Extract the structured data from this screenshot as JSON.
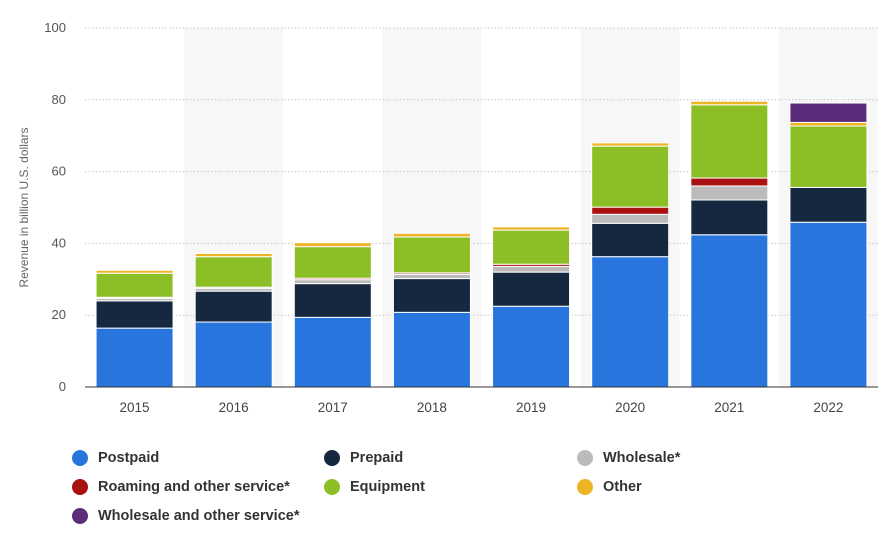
{
  "chart_data": {
    "type": "bar",
    "stacked": true,
    "categories": [
      "2015",
      "2016",
      "2017",
      "2018",
      "2019",
      "2020",
      "2021",
      "2022"
    ],
    "ylabel": "Revenue in billion U.S. dollars",
    "xlabel": "",
    "ylim": [
      0,
      100
    ],
    "yticks": [
      0,
      20,
      40,
      60,
      80,
      100
    ],
    "grid": true,
    "legend_position": "bottom",
    "series": [
      {
        "name": "Postpaid",
        "color": "#2876DD",
        "values": [
          16.4,
          18.1,
          19.4,
          20.8,
          22.5,
          36.3,
          42.4,
          45.9
        ]
      },
      {
        "name": "Prepaid",
        "color": "#152840",
        "values": [
          7.6,
          8.6,
          9.4,
          9.4,
          9.5,
          9.3,
          9.7,
          9.7
        ]
      },
      {
        "name": "Wholesale*",
        "color": "#BBBBBB",
        "values": [
          0.7,
          0.8,
          1.1,
          1.2,
          1.6,
          2.5,
          3.9,
          0
        ]
      },
      {
        "name": "Roaming and other service*",
        "color": "#AA1111",
        "values": [
          0.3,
          0.3,
          0.4,
          0.4,
          0.6,
          2.0,
          2.2,
          0
        ]
      },
      {
        "name": "Equipment",
        "color": "#8CBF26",
        "values": [
          6.7,
          8.5,
          8.8,
          10.0,
          9.5,
          17.0,
          20.4,
          17.1
        ]
      },
      {
        "name": "Other",
        "color": "#EFB425",
        "values": [
          0.8,
          0.9,
          1.1,
          1.0,
          0.9,
          0.9,
          1.0,
          1.0
        ]
      },
      {
        "name": "Wholesale and other service*",
        "color": "#5C2B7A",
        "values": [
          0,
          0,
          0,
          0,
          0,
          0,
          0,
          5.4
        ]
      }
    ]
  }
}
